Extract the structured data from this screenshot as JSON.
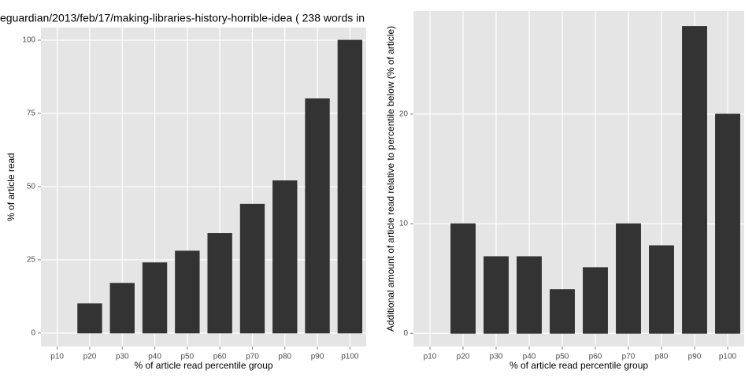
{
  "chart_data": [
    {
      "type": "bar",
      "title": "eguardian/2013/feb/17/making-libraries-history-horrible-idea ( 238 words in",
      "xlabel": "% of article read percentile group",
      "ylabel": "% of article read",
      "categories": [
        "p10",
        "p20",
        "p30",
        "p40",
        "p50",
        "p60",
        "p70",
        "p80",
        "p90",
        "p100"
      ],
      "values": [
        0,
        10,
        17,
        24,
        28,
        34,
        44,
        52,
        80,
        100
      ],
      "color": "#333333",
      "ylim": [
        -4.6,
        104.3
      ],
      "yticks": [
        0,
        25,
        50,
        75,
        100
      ],
      "grid": true
    },
    {
      "type": "bar",
      "xlabel": "% of article read percentile group",
      "ylabel": "Additional amount of article read relative to percentile below (% of article)",
      "categories": [
        "p10",
        "p20",
        "p30",
        "p40",
        "p50",
        "p60",
        "p70",
        "p80",
        "p90",
        "p100"
      ],
      "values": [
        0,
        10,
        7,
        7,
        4,
        6,
        10,
        8,
        28,
        20
      ],
      "color": "#333333",
      "ylim": [
        -1.2,
        29.4
      ],
      "yticks": [
        0,
        10,
        20
      ],
      "grid": true
    }
  ]
}
